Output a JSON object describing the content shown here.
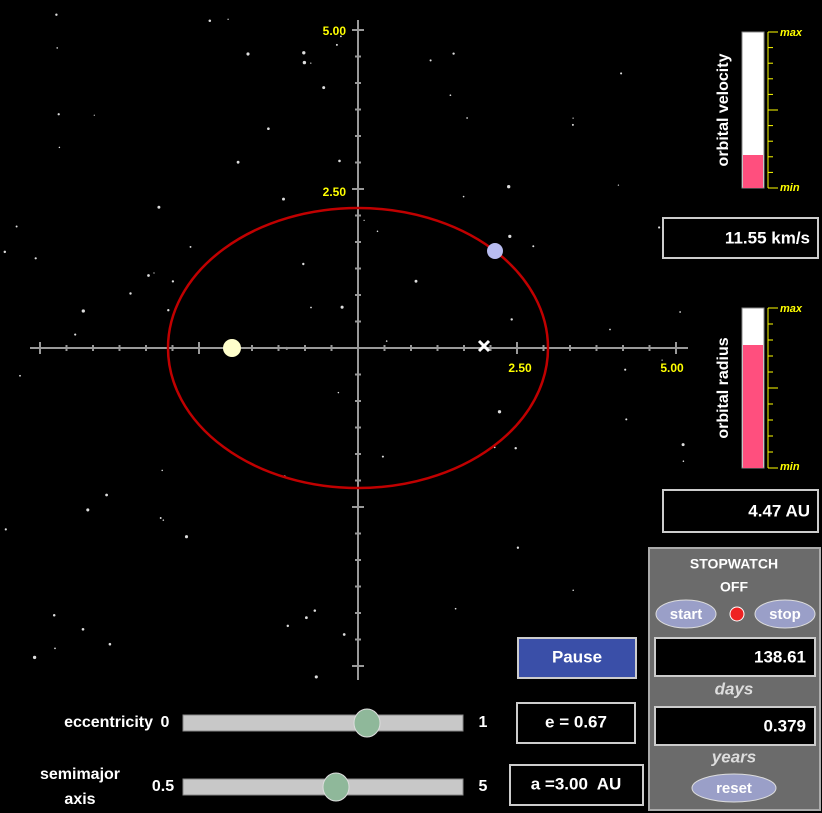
{
  "axes": {
    "y_top": "5.00",
    "y_mid": "2.50",
    "x_mid": "2.50",
    "x_right": "5.00"
  },
  "velocity_meter": {
    "label": "orbital velocity",
    "max": "max",
    "min": "min",
    "readout": "11.55 km/s"
  },
  "radius_meter": {
    "label": "orbital radius",
    "max": "max",
    "min": "min",
    "readout": "4.47 AU"
  },
  "stopwatch": {
    "title": "STOPWATCH",
    "status": "OFF",
    "start": "start",
    "stop": "stop",
    "days_value": "138.61",
    "days_label": "days",
    "years_value": "0.379",
    "years_label": "years",
    "reset": "reset"
  },
  "controls": {
    "pause": "Pause",
    "eccentricity": {
      "label": "eccentricity",
      "min": "0",
      "max": "1",
      "readout": "e = 0.67"
    },
    "semimajor": {
      "label_lines": [
        "semimajor",
        "axis"
      ],
      "min": "0.5",
      "max": "5",
      "readout": "a =3.00  AU"
    }
  }
}
